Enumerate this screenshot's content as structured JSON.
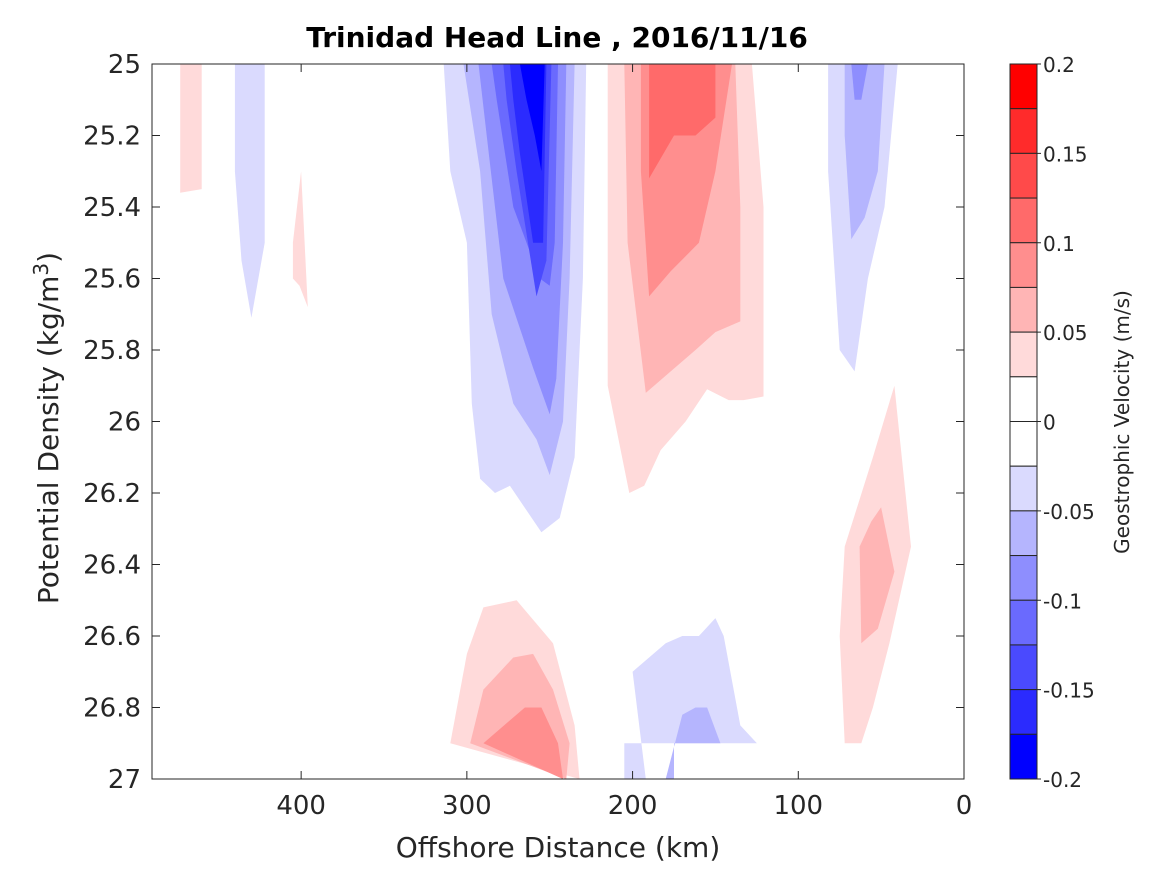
{
  "chart_data": {
    "type": "contour",
    "title": "Trinidad Head Line , 2016/11/16",
    "xlabel": "Offshore Distance (km)",
    "ylabel_main": "Potential Density (kg/m",
    "ylabel_sup": "3",
    "ylabel_end": ")",
    "colorbar_label": "Geostrophic Velocity (m/s)",
    "xlim": [
      490,
      0
    ],
    "ylim": [
      25,
      27
    ],
    "x_ticks": [
      400,
      300,
      200,
      100,
      0
    ],
    "x_tick_labels": [
      "400",
      "300",
      "200",
      "100",
      "0"
    ],
    "y_ticks": [
      25,
      25.2,
      25.4,
      25.6,
      25.8,
      26,
      26.2,
      26.4,
      26.6,
      26.8,
      27
    ],
    "y_tick_labels": [
      "25",
      "25.2",
      "25.4",
      "25.6",
      "25.8",
      "26",
      "26.2",
      "26.4",
      "26.6",
      "26.8",
      "27"
    ],
    "colorbar_range": [
      -0.2,
      0.2
    ],
    "colorbar_ticks": [
      0.2,
      0.15,
      0.1,
      0.05,
      0,
      -0.05,
      -0.1,
      -0.15,
      -0.2
    ],
    "colorbar_tick_labels": [
      "0.2",
      "0.15",
      "0.1",
      "0.05",
      "0",
      "-0.05",
      "-0.1",
      "-0.15",
      "-0.2"
    ],
    "colorbar_levels": [
      {
        "from": 0.175,
        "to": 0.2,
        "color": "#ff0000"
      },
      {
        "from": 0.15,
        "to": 0.175,
        "color": "#ff2b2b"
      },
      {
        "from": 0.125,
        "to": 0.15,
        "color": "#ff4a4a"
      },
      {
        "from": 0.1,
        "to": 0.125,
        "color": "#ff6a6a"
      },
      {
        "from": 0.075,
        "to": 0.1,
        "color": "#ff8e8e"
      },
      {
        "from": 0.05,
        "to": 0.075,
        "color": "#ffb5b5"
      },
      {
        "from": 0.025,
        "to": 0.05,
        "color": "#ffdada"
      },
      {
        "from": 0,
        "to": 0.025,
        "color": "#ffffff"
      },
      {
        "from": -0.025,
        "to": 0,
        "color": "#ffffff"
      },
      {
        "from": -0.05,
        "to": -0.025,
        "color": "#dadafe"
      },
      {
        "from": -0.075,
        "to": -0.05,
        "color": "#b5b5fe"
      },
      {
        "from": -0.1,
        "to": -0.075,
        "color": "#8e8efe"
      },
      {
        "from": -0.125,
        "to": -0.1,
        "color": "#6a6afe"
      },
      {
        "from": -0.15,
        "to": -0.125,
        "color": "#4a4afe"
      },
      {
        "from": -0.175,
        "to": -0.15,
        "color": "#2b2bfe"
      },
      {
        "from": -0.2,
        "to": -0.175,
        "color": "#0000ff"
      }
    ],
    "contour_regions": [
      {
        "name": "pos-far-west",
        "color": "#ffdada",
        "points": [
          [
            473,
            25
          ],
          [
            460,
            25
          ],
          [
            460,
            25.35
          ],
          [
            473,
            25.36
          ]
        ]
      },
      {
        "name": "neg-west",
        "color": "#dadafe",
        "points": [
          [
            440,
            25
          ],
          [
            422,
            25
          ],
          [
            422,
            25.5
          ],
          [
            430,
            25.71
          ],
          [
            436,
            25.55
          ],
          [
            440,
            25.3
          ]
        ]
      },
      {
        "name": "pos-400",
        "color": "#ffdada",
        "points": [
          [
            405,
            25.5
          ],
          [
            400,
            25.3
          ],
          [
            396,
            25.68
          ],
          [
            401,
            25.62
          ],
          [
            405,
            25.6
          ]
        ]
      },
      {
        "name": "neg-core-1",
        "color": "#dadafe",
        "points": [
          [
            314,
            25
          ],
          [
            228,
            25
          ],
          [
            230,
            25.6
          ],
          [
            235,
            26.1
          ],
          [
            244,
            26.27
          ],
          [
            255,
            26.31
          ],
          [
            274,
            26.18
          ],
          [
            283,
            26.2
          ],
          [
            292,
            26.16
          ],
          [
            297,
            25.95
          ],
          [
            300,
            25.5
          ],
          [
            310,
            25.3
          ]
        ]
      },
      {
        "name": "neg-core-2",
        "color": "#b5b5fe",
        "points": [
          [
            302,
            25
          ],
          [
            235,
            25
          ],
          [
            238,
            25.6
          ],
          [
            242,
            26.0
          ],
          [
            250,
            26.15
          ],
          [
            258,
            26.05
          ],
          [
            272,
            25.95
          ],
          [
            285,
            25.7
          ],
          [
            292,
            25.3
          ]
        ]
      },
      {
        "name": "neg-core-3",
        "color": "#8e8efe",
        "points": [
          [
            293,
            25
          ],
          [
            240,
            25
          ],
          [
            242,
            25.5
          ],
          [
            246,
            25.88
          ],
          [
            250,
            25.98
          ],
          [
            260,
            25.85
          ],
          [
            278,
            25.6
          ],
          [
            288,
            25.2
          ]
        ]
      },
      {
        "name": "neg-core-4",
        "color": "#6a6afe",
        "points": [
          [
            285,
            25
          ],
          [
            245,
            25
          ],
          [
            247,
            25.5
          ],
          [
            250,
            25.62
          ],
          [
            256,
            25.6
          ],
          [
            272,
            25.4
          ],
          [
            282,
            25.1
          ]
        ]
      },
      {
        "name": "neg-core-5",
        "color": "#4a4afe",
        "points": [
          [
            278,
            25
          ],
          [
            249,
            25
          ],
          [
            252,
            25.55
          ],
          [
            258,
            25.65
          ],
          [
            270,
            25.3
          ],
          [
            276,
            25.1
          ]
        ]
      },
      {
        "name": "neg-core-6",
        "color": "#2b2bfe",
        "points": [
          [
            274,
            25
          ],
          [
            252,
            25
          ],
          [
            254,
            25.5
          ],
          [
            260,
            25.5
          ],
          [
            268,
            25.25
          ],
          [
            272,
            25.1
          ]
        ]
      },
      {
        "name": "neg-core-7",
        "color": "#0000ff",
        "points": [
          [
            268,
            25
          ],
          [
            253,
            25
          ],
          [
            255,
            25.3
          ],
          [
            259,
            25.2
          ],
          [
            264,
            25.1
          ]
        ]
      },
      {
        "name": "pos-core-1",
        "color": "#ffdada",
        "points": [
          [
            215,
            25
          ],
          [
            128,
            25
          ],
          [
            121,
            25.4
          ],
          [
            121,
            25.93
          ],
          [
            133,
            25.94
          ],
          [
            142,
            25.94
          ],
          [
            155,
            25.91
          ],
          [
            168,
            26.0
          ],
          [
            183,
            26.08
          ],
          [
            193,
            26.18
          ],
          [
            202,
            26.2
          ],
          [
            215,
            25.9
          ],
          [
            215,
            25.4
          ]
        ]
      },
      {
        "name": "pos-core-2",
        "color": "#ffb5b5",
        "points": [
          [
            205,
            25
          ],
          [
            138,
            25
          ],
          [
            135,
            25.4
          ],
          [
            135,
            25.72
          ],
          [
            150,
            25.75
          ],
          [
            162,
            25.8
          ],
          [
            177,
            25.86
          ],
          [
            192,
            25.92
          ],
          [
            203,
            25.5
          ]
        ]
      },
      {
        "name": "pos-core-3",
        "color": "#ff8e8e",
        "points": [
          [
            195,
            25
          ],
          [
            140,
            25
          ],
          [
            145,
            25.15
          ],
          [
            150,
            25.3
          ],
          [
            160,
            25.5
          ],
          [
            177,
            25.58
          ],
          [
            190,
            25.65
          ],
          [
            195,
            25.3
          ]
        ]
      },
      {
        "name": "pos-core-4",
        "color": "#ff6a6a",
        "points": [
          [
            190,
            25
          ],
          [
            150,
            25
          ],
          [
            150,
            25.15
          ],
          [
            162,
            25.2
          ],
          [
            175,
            25.2
          ],
          [
            190,
            25.32
          ]
        ]
      },
      {
        "name": "neg-east-1",
        "color": "#dadafe",
        "points": [
          [
            82,
            25
          ],
          [
            40,
            25
          ],
          [
            48,
            25.4
          ],
          [
            58,
            25.6
          ],
          [
            66,
            25.86
          ],
          [
            75,
            25.8
          ],
          [
            82,
            25.3
          ]
        ]
      },
      {
        "name": "neg-east-2",
        "color": "#b5b5fe",
        "points": [
          [
            72,
            25
          ],
          [
            48,
            25
          ],
          [
            52,
            25.3
          ],
          [
            60,
            25.43
          ],
          [
            68,
            25.49
          ],
          [
            72,
            25.2
          ]
        ]
      },
      {
        "name": "neg-east-3",
        "color": "#8e8efe",
        "points": [
          [
            68,
            25
          ],
          [
            58,
            25
          ],
          [
            62,
            25.1
          ],
          [
            66,
            25.1
          ]
        ]
      },
      {
        "name": "pos-east-1",
        "color": "#ffdada",
        "points": [
          [
            42,
            25.9
          ],
          [
            32,
            26.35
          ],
          [
            45,
            26.62
          ],
          [
            55,
            26.8
          ],
          [
            62,
            26.9
          ],
          [
            72,
            26.9
          ],
          [
            75,
            26.6
          ],
          [
            72,
            26.35
          ],
          [
            55,
            26.1
          ]
        ]
      },
      {
        "name": "pos-east-2",
        "color": "#ffb5b5",
        "points": [
          [
            50,
            26.24
          ],
          [
            42,
            26.42
          ],
          [
            52,
            26.58
          ],
          [
            62,
            26.62
          ],
          [
            63,
            26.35
          ],
          [
            56,
            26.28
          ]
        ]
      },
      {
        "name": "pos-bottom-1",
        "color": "#ffdada",
        "points": [
          [
            290,
            26.52
          ],
          [
            270,
            26.5
          ],
          [
            248,
            26.62
          ],
          [
            235,
            26.85
          ],
          [
            232,
            27
          ],
          [
            310,
            26.9
          ],
          [
            300,
            26.65
          ]
        ]
      },
      {
        "name": "pos-bottom-2",
        "color": "#ffb5b5",
        "points": [
          [
            272,
            26.66
          ],
          [
            260,
            26.65
          ],
          [
            248,
            26.75
          ],
          [
            238,
            26.9
          ],
          [
            240,
            27
          ],
          [
            298,
            26.9
          ],
          [
            290,
            26.75
          ]
        ]
      },
      {
        "name": "pos-bottom-3",
        "color": "#ff8e8e",
        "points": [
          [
            265,
            26.8
          ],
          [
            255,
            26.8
          ],
          [
            245,
            26.9
          ],
          [
            242,
            27
          ],
          [
            290,
            26.9
          ]
        ]
      },
      {
        "name": "neg-bottom-1",
        "color": "#dadafe",
        "points": [
          [
            200,
            26.7
          ],
          [
            180,
            26.62
          ],
          [
            170,
            26.6
          ],
          [
            160,
            26.6
          ],
          [
            150,
            26.55
          ],
          [
            145,
            26.6
          ],
          [
            135,
            26.85
          ],
          [
            125,
            26.9
          ],
          [
            205,
            26.9
          ],
          [
            205,
            27
          ],
          [
            192,
            27
          ]
        ]
      },
      {
        "name": "neg-bottom-2",
        "color": "#b5b5fe",
        "points": [
          [
            170,
            26.82
          ],
          [
            162,
            26.8
          ],
          [
            155,
            26.8
          ],
          [
            147,
            26.9
          ],
          [
            175,
            26.9
          ],
          [
            175,
            27
          ],
          [
            180,
            27
          ]
        ]
      }
    ]
  }
}
